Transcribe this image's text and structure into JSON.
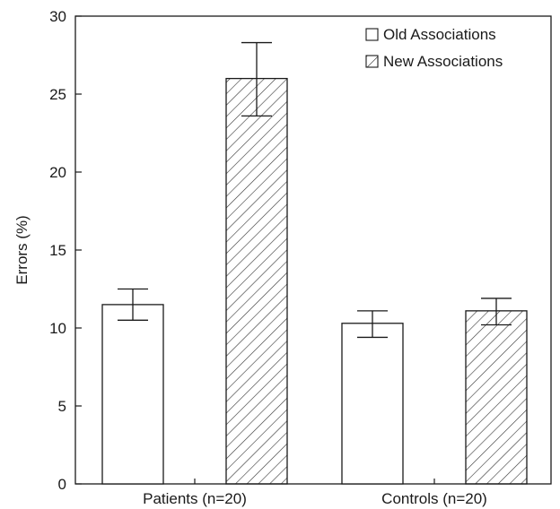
{
  "chart_data": {
    "type": "bar",
    "ylabel": "Errors (%)",
    "xlabel": "",
    "ylim": [
      0,
      30
    ],
    "yticks": [
      0,
      5,
      10,
      15,
      20,
      25,
      30
    ],
    "grid": false,
    "legend_placement": "top-right",
    "categories": [
      "Patients (n=20)",
      "Controls (n=20)"
    ],
    "series": [
      {
        "name": "Old Associations",
        "pattern": "solid-white",
        "values": [
          11.5,
          10.3
        ],
        "error_low": [
          10.5,
          9.4
        ],
        "error_high": [
          12.5,
          11.1
        ]
      },
      {
        "name": "New Associations",
        "pattern": "diagonal-hatch",
        "values": [
          26.0,
          11.1
        ],
        "error_low": [
          23.6,
          10.2
        ],
        "error_high": [
          28.3,
          11.9
        ]
      }
    ]
  },
  "colors": {
    "axis": "#1a1a1a",
    "bar_fill": "#ffffff",
    "hatch": "#333333"
  }
}
